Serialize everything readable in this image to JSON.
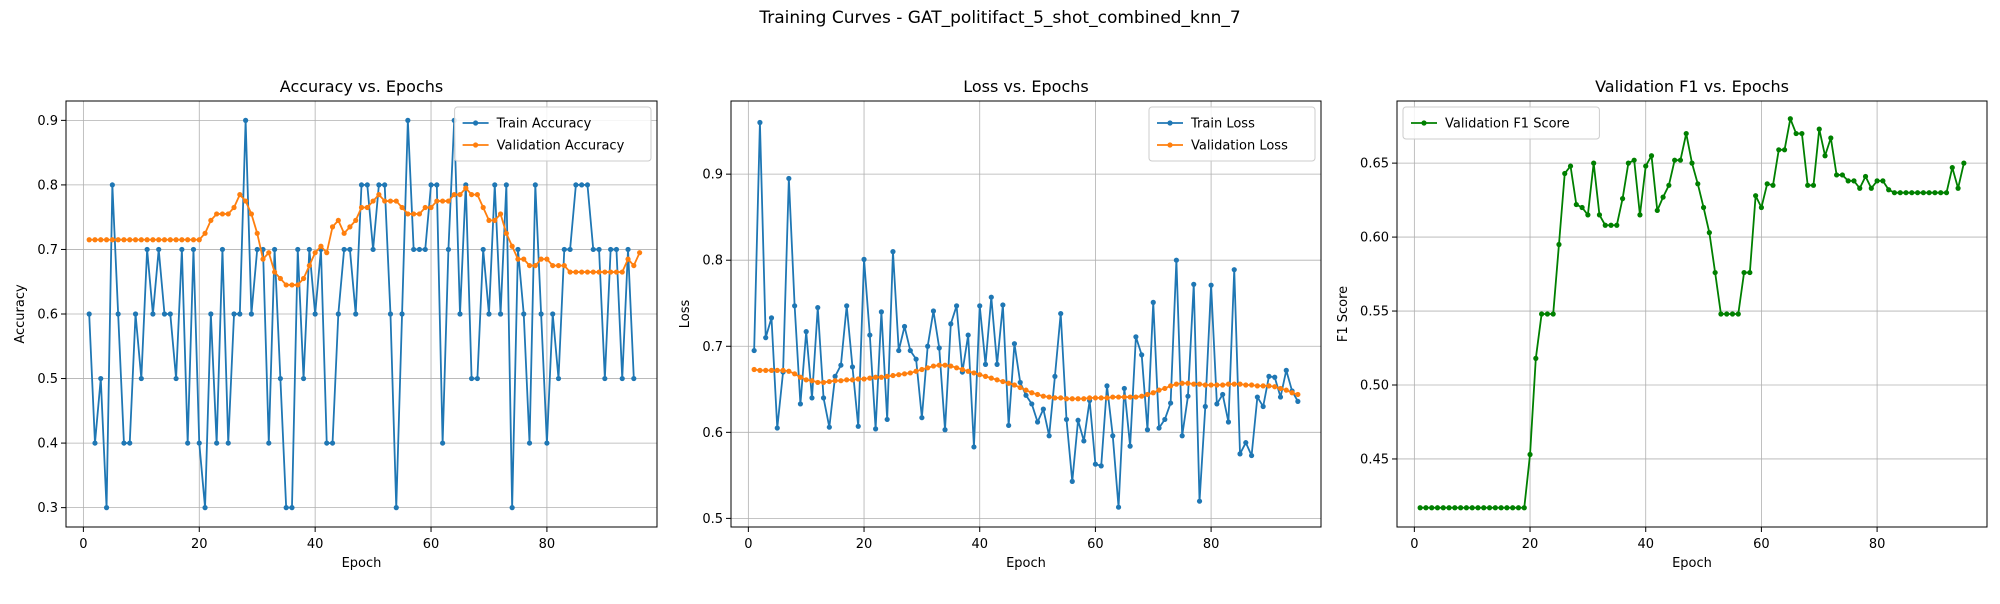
{
  "figure": {
    "suptitle": "Training Curves - GAT_politifact_5_shot_combined_knn_7"
  },
  "chart_data": [
    {
      "type": "line",
      "title": "Accuracy vs. Epochs",
      "xlabel": "Epoch",
      "ylabel": "Accuracy",
      "xlim": [
        -3,
        99
      ],
      "ylim": [
        0.27,
        0.93
      ],
      "xticks": [
        0,
        20,
        40,
        60,
        80
      ],
      "yticks": [
        0.3,
        0.4,
        0.5,
        0.6,
        0.7,
        0.8,
        0.9
      ],
      "tick_format": 1,
      "grid": true,
      "legend": {
        "placement": "top-right"
      },
      "series": [
        {
          "name": "Train Accuracy",
          "color": "#1f77b4",
          "start": 1,
          "values": [
            0.6,
            0.4,
            0.5,
            0.3,
            0.8,
            0.6,
            0.4,
            0.4,
            0.6,
            0.5,
            0.7,
            0.6,
            0.7,
            0.6,
            0.6,
            0.5,
            0.7,
            0.4,
            0.7,
            0.4,
            0.3,
            0.6,
            0.4,
            0.7,
            0.4,
            0.6,
            0.6,
            0.9,
            0.6,
            0.7,
            0.7,
            0.4,
            0.7,
            0.5,
            0.3,
            0.3,
            0.7,
            0.5,
            0.7,
            0.6,
            0.7,
            0.4,
            0.4,
            0.6,
            0.7,
            0.7,
            0.6,
            0.8,
            0.8,
            0.7,
            0.8,
            0.8,
            0.6,
            0.3,
            0.6,
            0.9,
            0.7,
            0.7,
            0.7,
            0.8,
            0.8,
            0.4,
            0.7,
            0.9,
            0.6,
            0.8,
            0.5,
            0.5,
            0.7,
            0.6,
            0.8,
            0.6,
            0.8,
            0.3,
            0.7,
            0.6,
            0.4,
            0.8,
            0.6,
            0.4,
            0.6,
            0.5,
            0.7,
            0.7,
            0.8,
            0.8,
            0.8,
            0.7,
            0.7,
            0.5,
            0.7,
            0.7,
            0.5,
            0.7,
            0.5
          ]
        },
        {
          "name": "Validation Accuracy",
          "color": "#ff7f0e",
          "start": 1,
          "values": [
            0.715,
            0.715,
            0.715,
            0.715,
            0.715,
            0.715,
            0.715,
            0.715,
            0.715,
            0.715,
            0.715,
            0.715,
            0.715,
            0.715,
            0.715,
            0.715,
            0.715,
            0.715,
            0.715,
            0.715,
            0.725,
            0.745,
            0.755,
            0.755,
            0.755,
            0.765,
            0.785,
            0.775,
            0.755,
            0.725,
            0.685,
            0.695,
            0.665,
            0.655,
            0.645,
            0.645,
            0.645,
            0.655,
            0.675,
            0.695,
            0.705,
            0.695,
            0.735,
            0.745,
            0.725,
            0.735,
            0.745,
            0.765,
            0.765,
            0.775,
            0.785,
            0.775,
            0.775,
            0.775,
            0.765,
            0.755,
            0.755,
            0.755,
            0.765,
            0.765,
            0.775,
            0.775,
            0.775,
            0.785,
            0.785,
            0.795,
            0.785,
            0.785,
            0.765,
            0.745,
            0.745,
            0.755,
            0.725,
            0.705,
            0.685,
            0.685,
            0.675,
            0.675,
            0.685,
            0.685,
            0.675,
            0.675,
            0.675,
            0.665,
            0.665,
            0.665,
            0.665,
            0.665,
            0.665,
            0.665,
            0.665,
            0.665,
            0.665,
            0.685,
            0.675,
            0.695
          ]
        }
      ]
    },
    {
      "type": "line",
      "title": "Loss vs. Epochs",
      "xlabel": "Epoch",
      "ylabel": "Loss",
      "xlim": [
        -3,
        99
      ],
      "ylim": [
        0.49,
        0.985
      ],
      "xticks": [
        0,
        20,
        40,
        60,
        80
      ],
      "yticks": [
        0.5,
        0.6,
        0.7,
        0.8,
        0.9
      ],
      "tick_format": 1,
      "grid": true,
      "legend": {
        "placement": "top-right"
      },
      "series": [
        {
          "name": "Train Loss",
          "color": "#1f77b4",
          "start": 1,
          "values": [
            0.695,
            0.96,
            0.71,
            0.733,
            0.605,
            0.67,
            0.895,
            0.747,
            0.633,
            0.717,
            0.64,
            0.745,
            0.64,
            0.606,
            0.665,
            0.678,
            0.747,
            0.676,
            0.607,
            0.801,
            0.713,
            0.604,
            0.74,
            0.615,
            0.81,
            0.695,
            0.723,
            0.695,
            0.685,
            0.617,
            0.7,
            0.741,
            0.698,
            0.603,
            0.726,
            0.747,
            0.67,
            0.713,
            0.583,
            0.747,
            0.679,
            0.757,
            0.679,
            0.748,
            0.608,
            0.703,
            0.658,
            0.643,
            0.633,
            0.612,
            0.627,
            0.596,
            0.665,
            0.738,
            0.615,
            0.543,
            0.614,
            0.59,
            0.637,
            0.563,
            0.561,
            0.654,
            0.596,
            0.513,
            0.651,
            0.584,
            0.711,
            0.69,
            0.603,
            0.751,
            0.605,
            0.615,
            0.634,
            0.8,
            0.596,
            0.642,
            0.772,
            0.52,
            0.63,
            0.771,
            0.633,
            0.644,
            0.612,
            0.789,
            0.575,
            0.588,
            0.573,
            0.641,
            0.63,
            0.665,
            0.664,
            0.641,
            0.672,
            0.648,
            0.636
          ]
        },
        {
          "name": "Validation Loss",
          "color": "#ff7f0e",
          "start": 1,
          "values": [
            0.673,
            0.672,
            0.672,
            0.672,
            0.672,
            0.672,
            0.671,
            0.668,
            0.664,
            0.661,
            0.66,
            0.658,
            0.658,
            0.659,
            0.66,
            0.66,
            0.661,
            0.661,
            0.662,
            0.662,
            0.663,
            0.664,
            0.664,
            0.665,
            0.666,
            0.667,
            0.668,
            0.669,
            0.671,
            0.673,
            0.675,
            0.677,
            0.678,
            0.678,
            0.677,
            0.675,
            0.673,
            0.671,
            0.669,
            0.667,
            0.665,
            0.663,
            0.661,
            0.659,
            0.657,
            0.655,
            0.652,
            0.649,
            0.646,
            0.644,
            0.642,
            0.641,
            0.64,
            0.64,
            0.639,
            0.639,
            0.639,
            0.639,
            0.64,
            0.64,
            0.64,
            0.64,
            0.641,
            0.641,
            0.641,
            0.641,
            0.641,
            0.642,
            0.644,
            0.646,
            0.649,
            0.651,
            0.654,
            0.656,
            0.657,
            0.657,
            0.656,
            0.656,
            0.655,
            0.655,
            0.655,
            0.655,
            0.656,
            0.656,
            0.656,
            0.655,
            0.655,
            0.654,
            0.654,
            0.654,
            0.653,
            0.651,
            0.649,
            0.646,
            0.644
          ]
        }
      ]
    },
    {
      "type": "line",
      "title": "Validation F1 vs. Epochs",
      "xlabel": "Epoch",
      "ylabel": "F1 Score",
      "xlim": [
        -3,
        99
      ],
      "ylim": [
        0.404,
        0.692
      ],
      "xticks": [
        0,
        20,
        40,
        60,
        80
      ],
      "yticks": [
        0.45,
        0.5,
        0.55,
        0.6,
        0.65
      ],
      "tick_format": 2,
      "grid": true,
      "legend": {
        "placement": "top-left"
      },
      "series": [
        {
          "name": "Validation F1 Score",
          "color": "#008000",
          "start": 1,
          "values": [
            0.417,
            0.417,
            0.417,
            0.417,
            0.417,
            0.417,
            0.417,
            0.417,
            0.417,
            0.417,
            0.417,
            0.417,
            0.417,
            0.417,
            0.417,
            0.417,
            0.417,
            0.417,
            0.417,
            0.453,
            0.518,
            0.548,
            0.548,
            0.548,
            0.595,
            0.643,
            0.648,
            0.622,
            0.62,
            0.615,
            0.65,
            0.615,
            0.608,
            0.608,
            0.608,
            0.626,
            0.65,
            0.652,
            0.615,
            0.648,
            0.655,
            0.618,
            0.627,
            0.635,
            0.652,
            0.652,
            0.67,
            0.65,
            0.636,
            0.62,
            0.603,
            0.576,
            0.548,
            0.548,
            0.548,
            0.548,
            0.576,
            0.576,
            0.628,
            0.62,
            0.636,
            0.635,
            0.659,
            0.659,
            0.68,
            0.67,
            0.67,
            0.635,
            0.635,
            0.673,
            0.655,
            0.667,
            0.642,
            0.642,
            0.638,
            0.638,
            0.633,
            0.641,
            0.633,
            0.638,
            0.638,
            0.632,
            0.63,
            0.63,
            0.63,
            0.63,
            0.63,
            0.63,
            0.63,
            0.63,
            0.63,
            0.63,
            0.647,
            0.633,
            0.65
          ]
        }
      ]
    }
  ]
}
